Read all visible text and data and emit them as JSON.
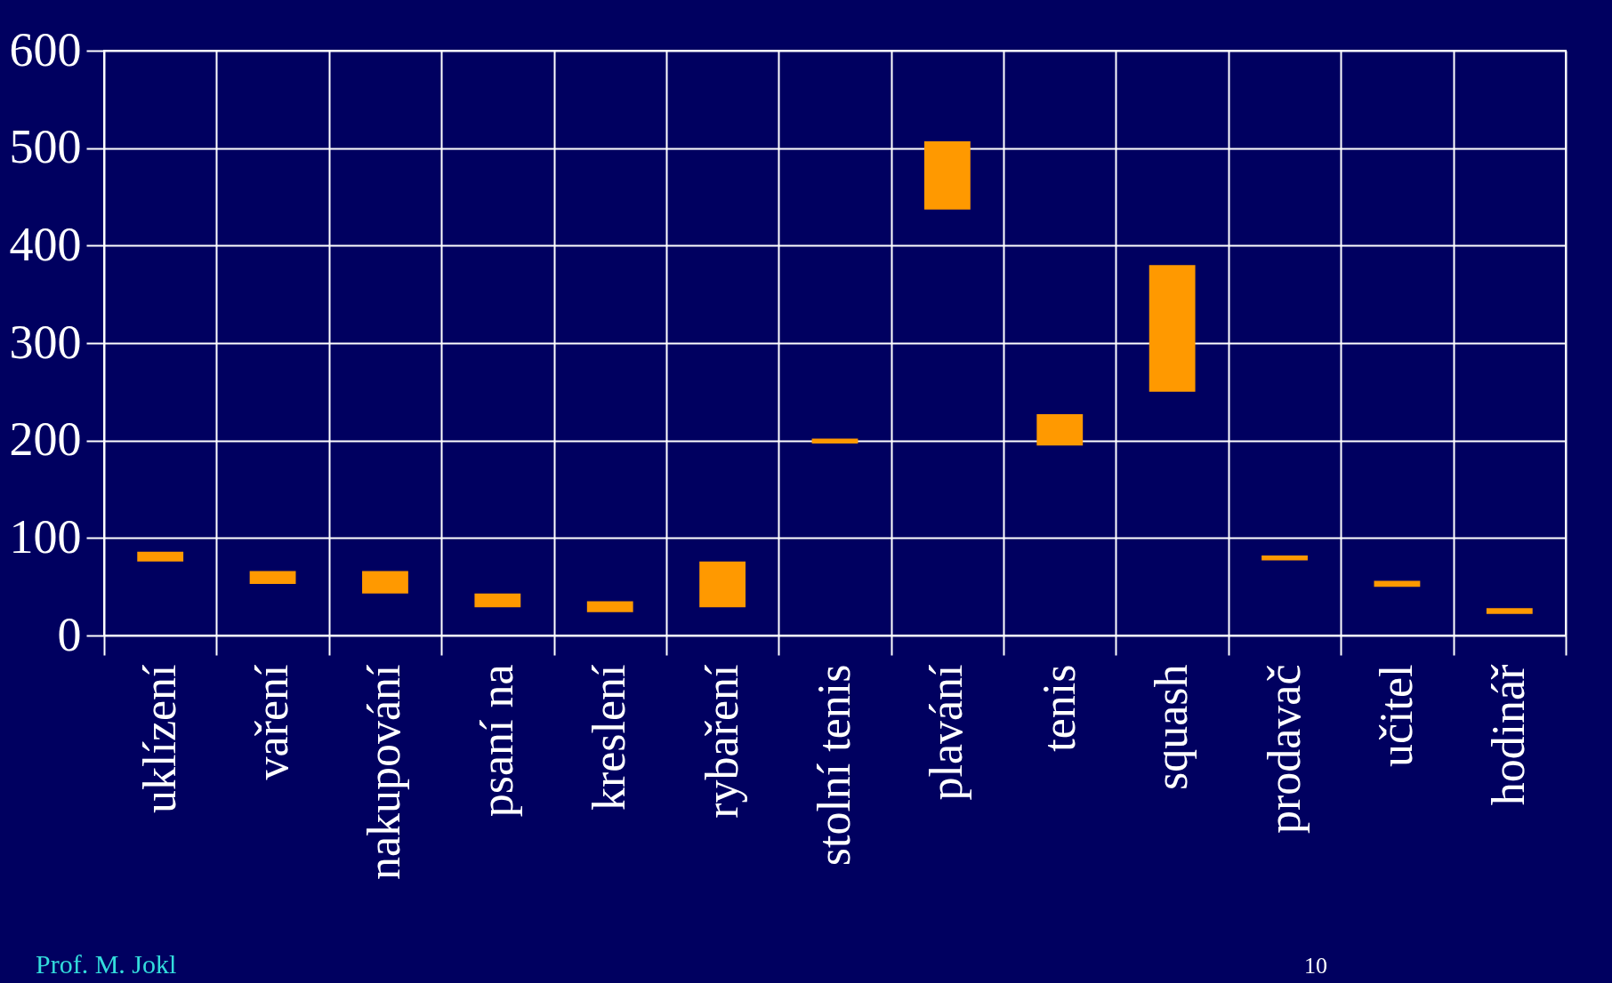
{
  "chart_data": {
    "type": "bar",
    "categories": [
      "uklízení",
      "vaření",
      "nakupování",
      "psaní na",
      "kreslení",
      "rybaření",
      "stolní tenis",
      "plavání",
      "tenis",
      "squash",
      "prodavač",
      "učitel",
      "hodinář"
    ],
    "base": [
      76,
      53,
      43,
      29,
      24,
      29,
      197,
      437,
      195,
      250,
      77,
      50,
      22
    ],
    "values": [
      10,
      13,
      23,
      14,
      11,
      47,
      5,
      70,
      32,
      130,
      5,
      6,
      6
    ],
    "color": "#ff9900",
    "ylim": [
      0,
      600
    ],
    "yticks": [
      0,
      100,
      200,
      300,
      400,
      500,
      600
    ],
    "grid": true,
    "annotations": [
      "Prof. M. Jokl",
      "10"
    ]
  }
}
